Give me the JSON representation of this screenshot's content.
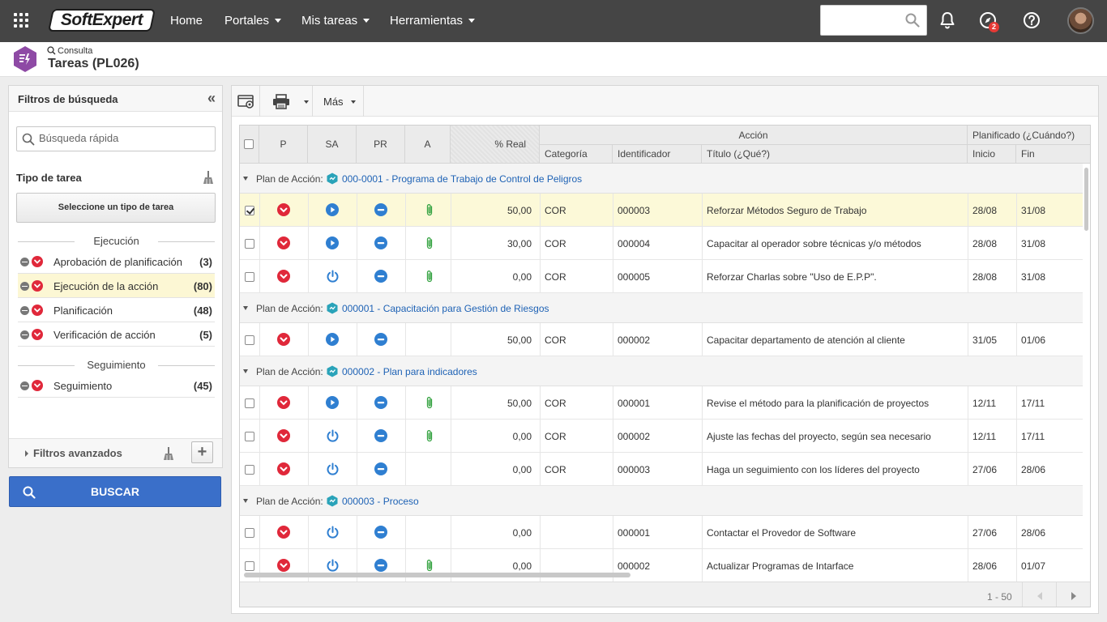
{
  "topbar": {
    "logo_text": "SoftExpert",
    "nav": [
      {
        "label": "Home",
        "dropdown": false
      },
      {
        "label": "Portales",
        "dropdown": true
      },
      {
        "label": "Mis tareas",
        "dropdown": true
      },
      {
        "label": "Herramientas",
        "dropdown": true
      }
    ],
    "search_value": "",
    "notification_badge": "2"
  },
  "header": {
    "breadcrumb": "Consulta",
    "title": "Tareas (PL026)"
  },
  "filters": {
    "title": "Filtros de búsqueda",
    "quick_search_placeholder": "Búsqueda rápida",
    "type_label": "Tipo de tarea",
    "select_type_button": "Seleccione un tipo de tarea",
    "sections": [
      {
        "title": "Ejecución",
        "items": [
          {
            "label": "Aprobación de planificación",
            "count": "(3)",
            "active": false
          },
          {
            "label": "Ejecución de la acción",
            "count": "(80)",
            "active": true
          },
          {
            "label": "Planificación",
            "count": "(48)",
            "active": false
          },
          {
            "label": "Verificación de acción",
            "count": "(5)",
            "active": false
          }
        ]
      },
      {
        "title": "Seguimiento",
        "items": [
          {
            "label": "Seguimiento",
            "count": "(45)",
            "active": false
          }
        ]
      }
    ],
    "advanced_label": "Filtros avanzados",
    "search_button": "BUSCAR"
  },
  "toolbar": {
    "more_label": "Más"
  },
  "grid": {
    "headers": {
      "p": "P",
      "sa": "SA",
      "pr": "PR",
      "a": "A",
      "real": "% Real",
      "accion": "Acción",
      "categoria": "Categoría",
      "identificador": "Identificador",
      "titulo": "Título (¿Qué?)",
      "planificado": "Planificado (¿Cuándo?)",
      "inicio": "Inicio",
      "fin": "Fin"
    },
    "group_prefix": "Plan de Acción:",
    "groups": [
      {
        "link": "000-0001 - Programa de Trabajo de Control de Peligros",
        "rows": [
          {
            "checked": true,
            "sa": "play",
            "attach": true,
            "real": "50,00",
            "cat": "COR",
            "id": "000003",
            "title": "Reforzar Métodos Seguro de Trabajo",
            "start": "28/08",
            "end": "31/08",
            "selected": true
          },
          {
            "checked": false,
            "sa": "play",
            "attach": true,
            "real": "30,00",
            "cat": "COR",
            "id": "000004",
            "title": "Capacitar al operador sobre técnicas y/o métodos",
            "start": "28/08",
            "end": "31/08",
            "selected": false
          },
          {
            "checked": false,
            "sa": "power",
            "attach": true,
            "real": "0,00",
            "cat": "COR",
            "id": "000005",
            "title": "Reforzar Charlas sobre \"Uso de E.P.P\".",
            "start": "28/08",
            "end": "31/08",
            "selected": false
          }
        ]
      },
      {
        "link": "000001 - Capacitación para Gestión de Riesgos",
        "rows": [
          {
            "checked": false,
            "sa": "play",
            "attach": false,
            "real": "50,00",
            "cat": "COR",
            "id": "000002",
            "title": "Capacitar departamento de atención al cliente",
            "start": "31/05",
            "end": "01/06",
            "selected": false
          }
        ]
      },
      {
        "link": "000002 - Plan para indicadores",
        "rows": [
          {
            "checked": false,
            "sa": "play",
            "attach": true,
            "real": "50,00",
            "cat": "COR",
            "id": "000001",
            "title": "Revise el método para la planificación de proyectos",
            "start": "12/11",
            "end": "17/11",
            "selected": false
          },
          {
            "checked": false,
            "sa": "power",
            "attach": true,
            "real": "0,00",
            "cat": "COR",
            "id": "000002",
            "title": "Ajuste las fechas del proyecto, según sea necesario",
            "start": "12/11",
            "end": "17/11",
            "selected": false
          },
          {
            "checked": false,
            "sa": "power",
            "attach": false,
            "real": "0,00",
            "cat": "COR",
            "id": "000003",
            "title": "Haga un seguimiento con los líderes del proyecto",
            "start": "27/06",
            "end": "28/06",
            "selected": false
          }
        ]
      },
      {
        "link": "000003 - Proceso",
        "rows": [
          {
            "checked": false,
            "sa": "power",
            "attach": false,
            "real": "0,00",
            "cat": "",
            "id": "000001",
            "title": "Contactar el Provedor de Software",
            "start": "27/06",
            "end": "28/06",
            "selected": false
          },
          {
            "checked": false,
            "sa": "power",
            "attach": true,
            "real": "0,00",
            "cat": "",
            "id": "000002",
            "title": "Actualizar Programas de Intarface",
            "start": "28/06",
            "end": "01/07",
            "selected": false
          }
        ]
      }
    ],
    "page_range": "1 - 50"
  },
  "colors": {
    "topbar": "#454545",
    "accent_blue": "#3a6fc9",
    "red_status": "#e0283a",
    "play_blue": "#2f7fd1",
    "link_blue": "#1e62b5",
    "attach_green": "#3aa546",
    "selected_row": "#fcf9d8"
  }
}
